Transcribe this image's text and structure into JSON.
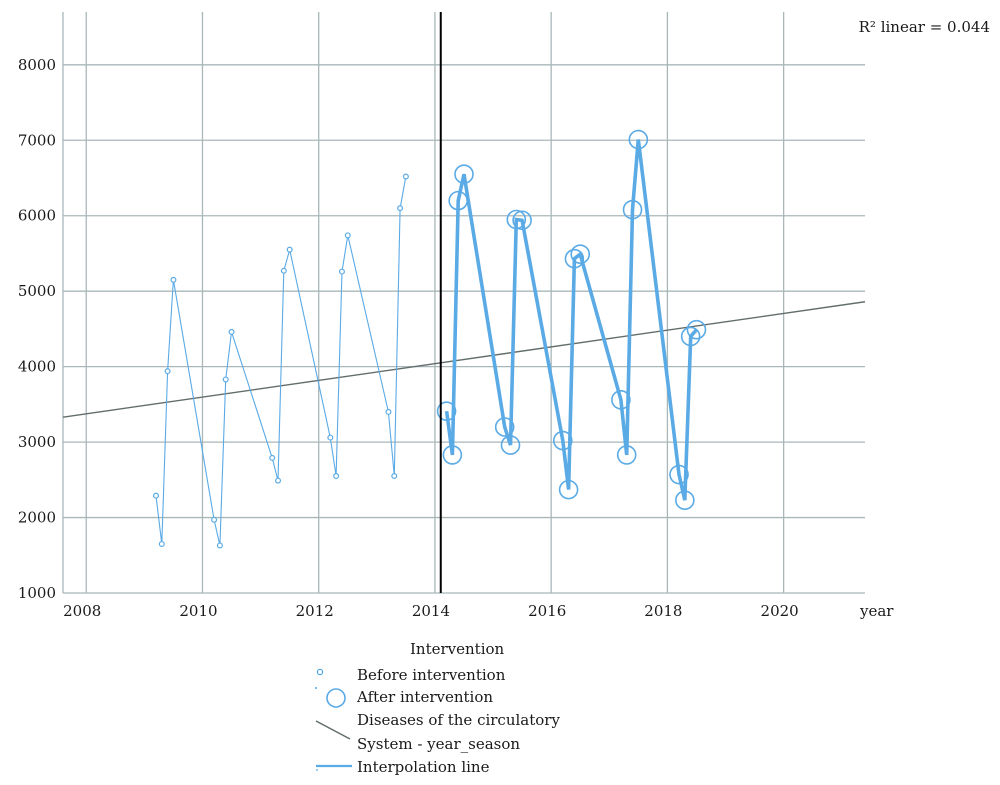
{
  "r2_text": "R² linear = 0.044",
  "legend": {
    "title": "Intervention",
    "before_label": "Before intervention",
    "after_label": "After intervention",
    "fit_label_line1": "Diseases of the circulatory",
    "fit_label_line2": "System - year_season",
    "interp_label": "Interpolation line"
  },
  "colors": {
    "series": "#5aaae6",
    "fit": "#626e6c",
    "grid": "#a9b7b9",
    "intervention": "#000000"
  },
  "chart_data": {
    "type": "scatter",
    "xlabel": "year",
    "ylabel": "",
    "xlim": [
      2007.6,
      2021.4
    ],
    "ylim": [
      1000,
      8700
    ],
    "x_ticks": [
      2008,
      2010,
      2012,
      2014,
      2016,
      2018,
      2020
    ],
    "y_ticks": [
      1000,
      2000,
      3000,
      4000,
      5000,
      6000,
      7000,
      8000
    ],
    "intervention_x": 2014.1,
    "fit_line": {
      "r2": 0.044,
      "x": [
        2007.6,
        2021.4
      ],
      "y": [
        3330,
        4860
      ]
    },
    "series": [
      {
        "name": "Before intervention",
        "points": [
          [
            2009.2,
            2290
          ],
          [
            2009.3,
            1650
          ],
          [
            2009.4,
            3940
          ],
          [
            2009.5,
            5150
          ],
          [
            2010.2,
            1970
          ],
          [
            2010.3,
            1630
          ],
          [
            2010.4,
            3830
          ],
          [
            2010.5,
            4460
          ],
          [
            2011.2,
            2790
          ],
          [
            2011.3,
            2490
          ],
          [
            2011.4,
            5270
          ],
          [
            2011.5,
            5550
          ],
          [
            2012.2,
            3060
          ],
          [
            2012.3,
            2550
          ],
          [
            2012.4,
            5260
          ],
          [
            2012.5,
            5740
          ],
          [
            2013.2,
            3400
          ],
          [
            2013.3,
            2550
          ],
          [
            2013.4,
            6100
          ],
          [
            2013.5,
            6520
          ]
        ]
      },
      {
        "name": "After intervention",
        "points": [
          [
            2014.2,
            3410
          ],
          [
            2014.3,
            2830
          ],
          [
            2014.4,
            6200
          ],
          [
            2014.5,
            6550
          ],
          [
            2015.2,
            3200
          ],
          [
            2015.3,
            2960
          ],
          [
            2015.4,
            5950
          ],
          [
            2015.5,
            5940
          ],
          [
            2016.2,
            3020
          ],
          [
            2016.3,
            2370
          ],
          [
            2016.4,
            5430
          ],
          [
            2016.5,
            5490
          ],
          [
            2017.2,
            3560
          ],
          [
            2017.3,
            2830
          ],
          [
            2017.4,
            6080
          ],
          [
            2017.5,
            7010
          ],
          [
            2018.2,
            2570
          ],
          [
            2018.3,
            2230
          ],
          [
            2018.4,
            4400
          ],
          [
            2018.5,
            4490
          ]
        ]
      }
    ]
  }
}
